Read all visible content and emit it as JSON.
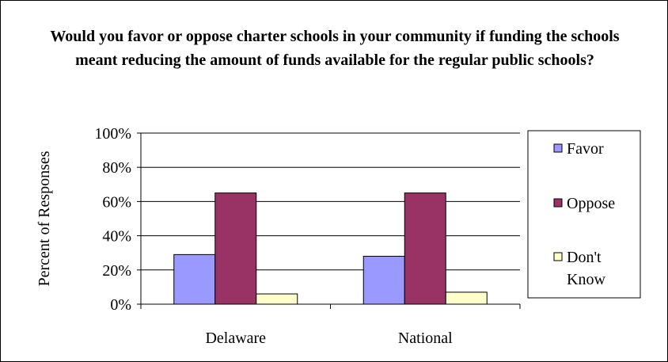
{
  "chart_data": {
    "type": "bar",
    "title": "Would you favor or oppose charter schools in your community if funding the schools meant reducing the amount of funds available for the regular public schools?",
    "ylabel": "Percent of Responses",
    "xlabel": "",
    "categories": [
      "Delaware",
      "National"
    ],
    "series": [
      {
        "name": "Favor",
        "values": [
          29,
          28
        ],
        "color": "#9999ff"
      },
      {
        "name": "Oppose",
        "values": [
          65,
          65
        ],
        "color": "#993366"
      },
      {
        "name": "Don't Know",
        "values": [
          6,
          7
        ],
        "color": "#ffffcc"
      }
    ],
    "ylim": [
      0,
      100
    ],
    "yticks": [
      "0%",
      "20%",
      "40%",
      "60%",
      "80%",
      "100%"
    ],
    "grid": true,
    "legend_position": "right"
  }
}
